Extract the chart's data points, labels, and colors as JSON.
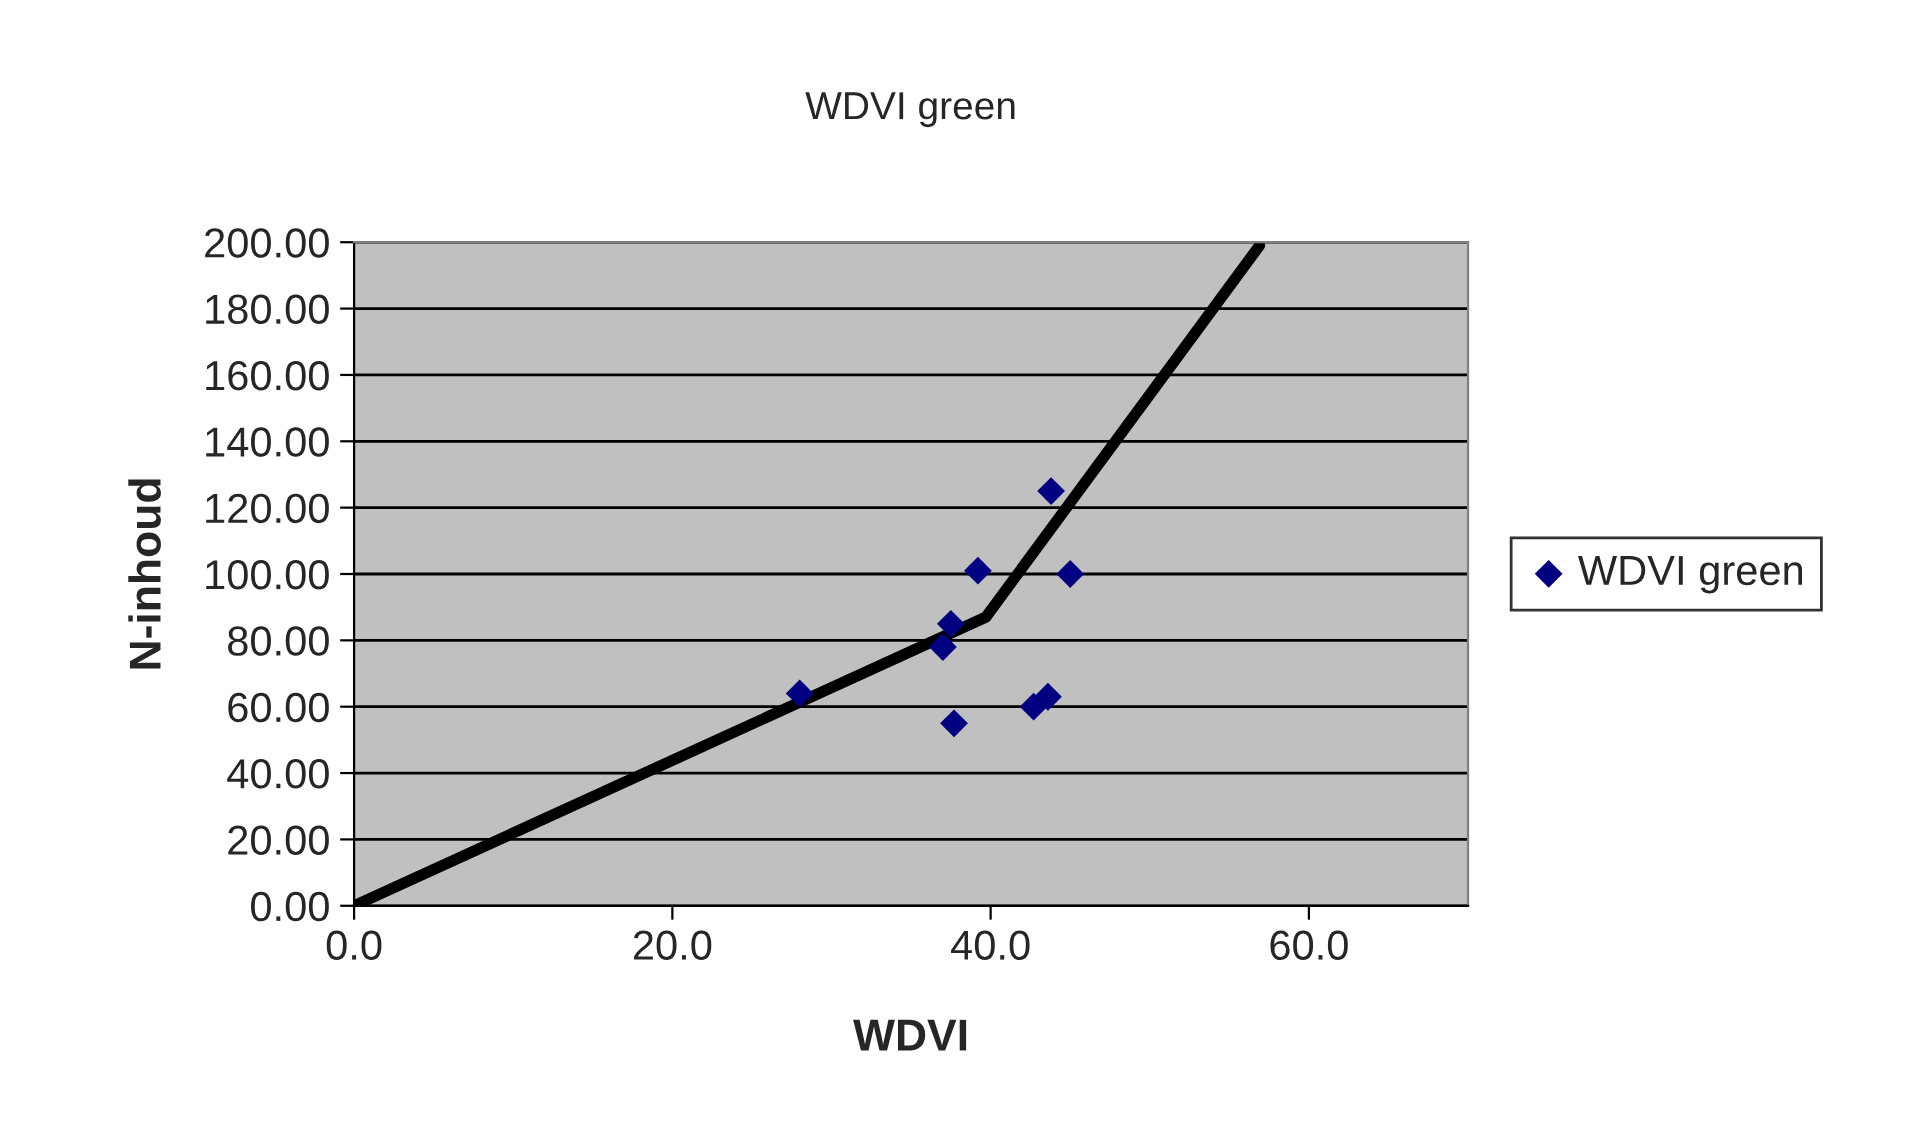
{
  "chart_data": {
    "type": "scatter",
    "title": "WDVI green",
    "xlabel": "WDVI",
    "ylabel": "N-inhoud",
    "xlim": [
      0,
      70
    ],
    "xticks": [
      {
        "value": 0,
        "label": "0.0"
      },
      {
        "value": 20,
        "label": "20.0"
      },
      {
        "value": 40,
        "label": "40.0"
      },
      {
        "value": 60,
        "label": "60.0"
      }
    ],
    "ylim": [
      0,
      200
    ],
    "yticks": [
      {
        "value": 0,
        "label": "0.00"
      },
      {
        "value": 20,
        "label": "20.00"
      },
      {
        "value": 40,
        "label": "40.00"
      },
      {
        "value": 60,
        "label": "60.00"
      },
      {
        "value": 80,
        "label": "80.00"
      },
      {
        "value": 100,
        "label": "100.00"
      },
      {
        "value": 120,
        "label": "120.00"
      },
      {
        "value": 140,
        "label": "140.00"
      },
      {
        "value": 160,
        "label": "160.00"
      },
      {
        "value": 180,
        "label": "180.00"
      },
      {
        "value": 200,
        "label": "200.00"
      }
    ],
    "grid": "y",
    "legend": "right",
    "series": [
      {
        "name": "WDVI green",
        "marker": "diamond",
        "color": "#000080",
        "x": [
          28.0,
          37.5,
          37.0,
          39.2,
          37.7,
          43.8,
          45.0,
          42.7,
          43.6
        ],
        "values": [
          64,
          85,
          78,
          101,
          55,
          125,
          100,
          60,
          63
        ]
      },
      {
        "type": "line",
        "marker": "none",
        "color": "#000000",
        "x": [
          0,
          39.7,
          56.9
        ],
        "values": [
          0,
          87,
          199
        ]
      }
    ]
  }
}
